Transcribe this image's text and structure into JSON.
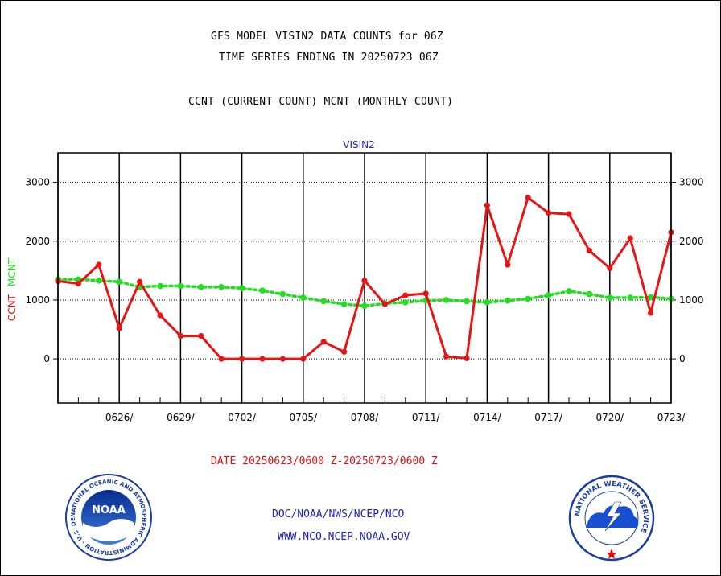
{
  "header": {
    "line1": "GFS MODEL VISIN2 DATA COUNTS for 06Z",
    "line2": "TIME SERIES ENDING IN 20250723 06Z",
    "line3": "CCNT (CURRENT COUNT) MCNT (MONTHLY COUNT)"
  },
  "footer": {
    "date_range": "DATE 20250623/0600 Z-20250723/0600 Z",
    "org": "DOC/NOAA/NWS/NCEP/NCO",
    "url": "WWW.NCO.NCEP.NOAA.GOV",
    "noaa_logo_text": "NOAA",
    "noaa_ring_text": "NATIONAL OCEANIC AND ATMOSPHERIC ADMINISTRATION · U.S. DEPARTMENT OF COMMERCE",
    "nws_ring_text": "NATIONAL WEATHER SERVICE"
  },
  "colors": {
    "ccnt": "#e81414",
    "mcnt": "#22dd22",
    "label_blue": "#1f1fbf"
  },
  "chart_data": {
    "type": "line",
    "title": "VISIN2",
    "ylabel_parts": [
      "CCNT",
      "MCNT"
    ],
    "ylim": [
      -750,
      3500
    ],
    "yticks": [
      0,
      1000,
      2000,
      3000
    ],
    "grid": true,
    "x_dates": [
      "0623",
      "0624",
      "0625",
      "0626",
      "0627",
      "0628",
      "0629",
      "0630",
      "0701",
      "0702",
      "0703",
      "0704",
      "0705",
      "0706",
      "0707",
      "0708",
      "0709",
      "0710",
      "0711",
      "0712",
      "0713",
      "0714",
      "0715",
      "0716",
      "0717",
      "0718",
      "0719",
      "0720",
      "0721",
      "0722",
      "0723"
    ],
    "x_tick_labels": [
      "0626/",
      "0629/",
      "0702/",
      "0705/",
      "0708/",
      "0711/",
      "0714/",
      "0717/",
      "0720/",
      "0723/"
    ],
    "series": [
      {
        "name": "CCNT",
        "values": [
          1320,
          1280,
          1600,
          520,
          1310,
          740,
          390,
          390,
          0,
          0,
          0,
          0,
          0,
          290,
          120,
          1330,
          930,
          1080,
          1110,
          40,
          10,
          2610,
          1600,
          2740,
          2480,
          2460,
          1840,
          1540,
          2050,
          780,
          2150
        ]
      },
      {
        "name": "MCNT",
        "values": [
          1350,
          1350,
          1330,
          1310,
          1220,
          1240,
          1240,
          1220,
          1220,
          1200,
          1160,
          1100,
          1040,
          980,
          930,
          900,
          940,
          960,
          990,
          1000,
          980,
          960,
          990,
          1020,
          1080,
          1150,
          1100,
          1040,
          1040,
          1050,
          1020
        ]
      }
    ]
  }
}
